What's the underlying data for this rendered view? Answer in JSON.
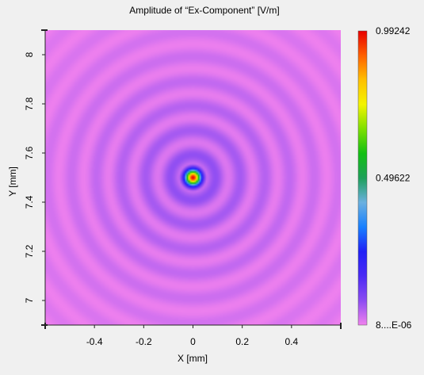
{
  "chart_data": {
    "type": "heatmap",
    "title": "Amplitude of “Ex-Component”  [V/m]",
    "xlabel": "X [mm]",
    "ylabel": "Y [mm]",
    "xlim": [
      -0.6,
      0.6
    ],
    "ylim": [
      6.9,
      8.1
    ],
    "x_ticks": [
      -0.4,
      -0.2,
      0,
      0.2,
      0.4
    ],
    "y_ticks": [
      7,
      7.2,
      7.4,
      7.6,
      7.8,
      8
    ],
    "colorbar": {
      "labels": [
        "0.99242",
        "0.49622",
        "8....E-06"
      ],
      "values": [
        0.99242,
        0.49622,
        8e-06
      ],
      "stops": [
        "#f081ee",
        "#8c4cf2",
        "#4a2af5",
        "#2020f6",
        "#1880ff",
        "#6ab0e0",
        "#1ea05a",
        "#12c012",
        "#7ee000",
        "#f4f400",
        "#ffc000",
        "#ff6000",
        "#e80000"
      ]
    },
    "field": {
      "center": [
        0.0,
        7.5
      ],
      "peak": 0.99242,
      "background": 8e-06
    }
  }
}
